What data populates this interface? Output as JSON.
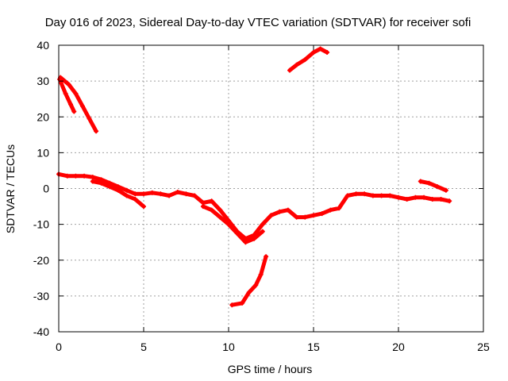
{
  "chart_data": {
    "type": "line",
    "title": "Day 016 of 2023, Sidereal Day-to-day VTEC variation (SDTVAR) for receiver sofi",
    "xlabel": "GPS time / hours",
    "ylabel": "SDTVAR / TECUs",
    "xlim": [
      0,
      25
    ],
    "ylim": [
      -40,
      40
    ],
    "xticks": [
      0,
      5,
      10,
      15,
      20,
      25
    ],
    "yticks": [
      -40,
      -30,
      -20,
      -10,
      0,
      10,
      20,
      30,
      40
    ],
    "xtick_labels": [
      "0",
      "5",
      "10",
      "15",
      "20",
      "25"
    ],
    "ytick_labels": [
      "-40",
      "-30",
      "-20",
      "-10",
      "0",
      "10",
      "20",
      "30",
      "40"
    ],
    "grid": true,
    "color": "#ff0000",
    "series": [
      {
        "name": "arc-1",
        "x": [
          0.05,
          0.4,
          0.7,
          0.9
        ],
        "y": [
          30.5,
          26.5,
          23.5,
          21.5
        ]
      },
      {
        "name": "arc-2",
        "x": [
          0.1,
          0.6,
          1.0,
          1.4,
          1.8,
          2.2
        ],
        "y": [
          31,
          29,
          26.5,
          23,
          19.5,
          16
        ]
      },
      {
        "name": "arc-3",
        "x": [
          0.0,
          0.5,
          1.0,
          1.5,
          2.0,
          2.5,
          3.0,
          3.5,
          4.0,
          4.5,
          5.0,
          5.5,
          6.0,
          6.5,
          7.0,
          7.5,
          8.0,
          8.5,
          9.0,
          9.5,
          10.0,
          10.5,
          11.0,
          11.5,
          12.0,
          12.5,
          13.0,
          13.5,
          14.0,
          14.5,
          15.0,
          15.5,
          16.0,
          16.5,
          17.0,
          17.5,
          18.0,
          18.5,
          19.0,
          19.5,
          20.0,
          20.5,
          21.0,
          21.5,
          22.0,
          22.5,
          23.0
        ],
        "y": [
          4,
          3.5,
          3.5,
          3.5,
          3.2,
          2.5,
          1.5,
          0.5,
          -0.5,
          -1.5,
          -1.5,
          -1.2,
          -1.5,
          -2,
          -1,
          -1.5,
          -2,
          -4,
          -3.5,
          -6,
          -9,
          -12,
          -14,
          -13,
          -10,
          -7.5,
          -6.5,
          -6,
          -8,
          -8,
          -7.5,
          -7,
          -6,
          -5.5,
          -2,
          -1.5,
          -1.5,
          -2,
          -2,
          -2,
          -2.5,
          -3,
          -2.5,
          -2.5,
          -3,
          -3,
          -3.5
        ]
      },
      {
        "name": "arc-4",
        "x": [
          2.0,
          2.5,
          3.0,
          3.5,
          4.0,
          4.5,
          5.0
        ],
        "y": [
          2,
          1.5,
          0.5,
          -0.5,
          -2,
          -3,
          -5
        ]
      },
      {
        "name": "arc-5",
        "x": [
          8.5,
          9.0,
          9.5,
          10.0,
          10.5,
          11.0,
          11.5,
          12.0
        ],
        "y": [
          -5,
          -6,
          -8,
          -10,
          -12.5,
          -15,
          -14,
          -12
        ]
      },
      {
        "name": "arc-6",
        "x": [
          10.2,
          10.8,
          11.2,
          11.6,
          11.9,
          12.2
        ],
        "y": [
          -32.5,
          -32,
          -29,
          -27,
          -24,
          -19
        ]
      },
      {
        "name": "arc-7",
        "x": [
          13.6,
          14.0,
          14.5,
          15.0,
          15.4,
          15.8
        ],
        "y": [
          33,
          34.5,
          36,
          38,
          39,
          38
        ]
      },
      {
        "name": "arc-8",
        "x": [
          21.3,
          21.8,
          22.3,
          22.8
        ],
        "y": [
          2,
          1.5,
          0.5,
          -0.5
        ]
      }
    ]
  }
}
